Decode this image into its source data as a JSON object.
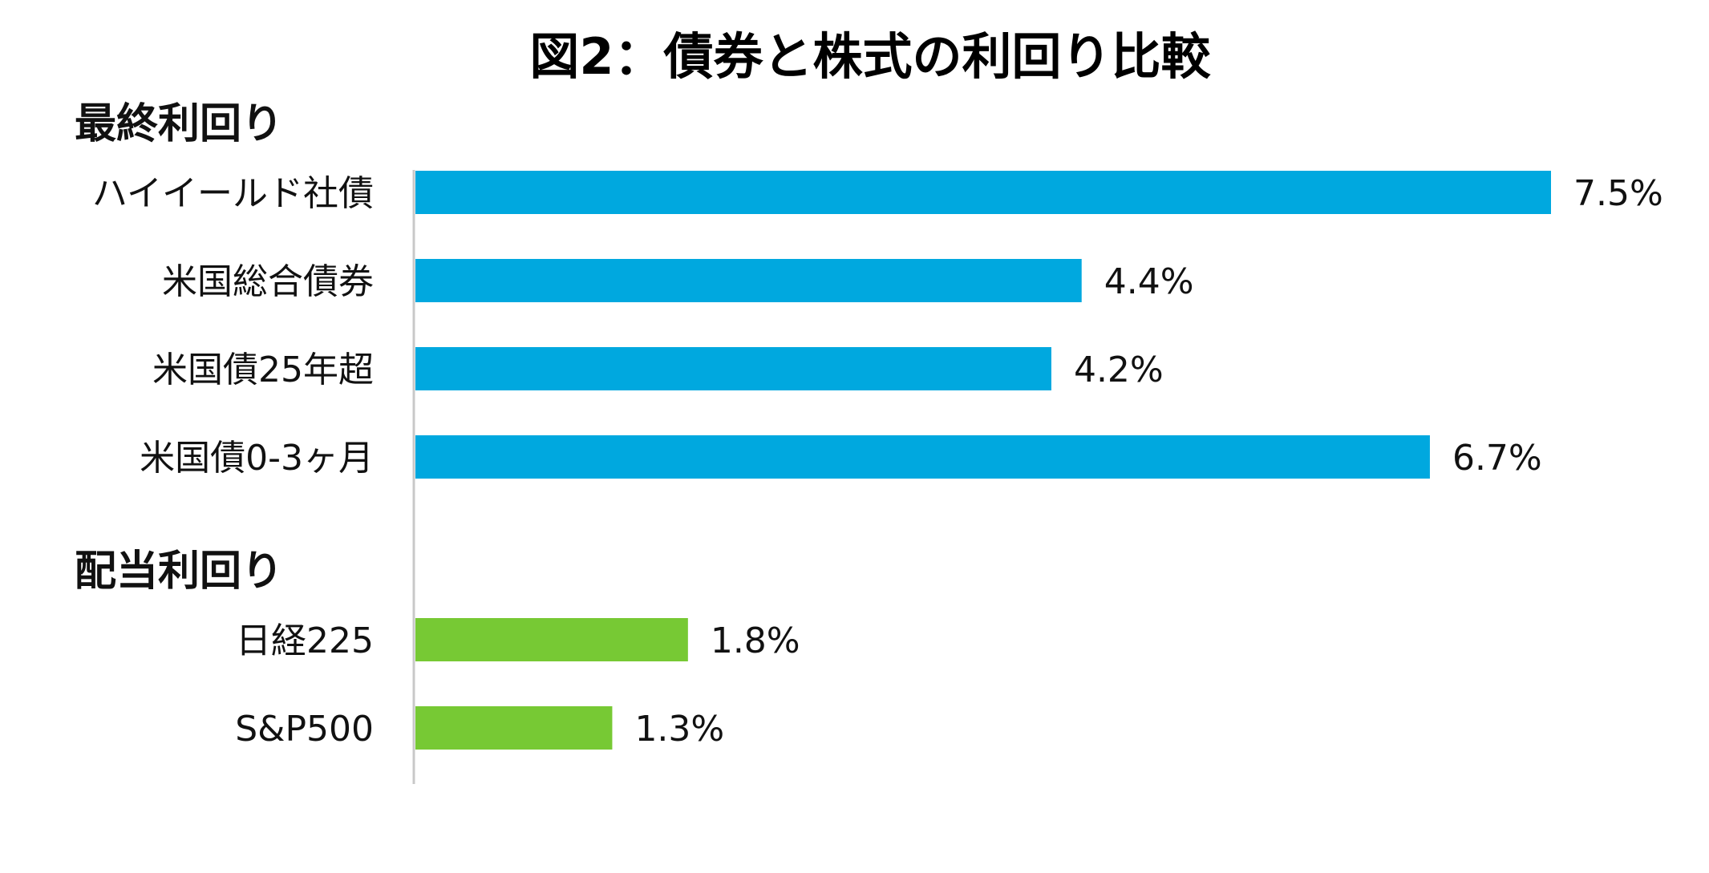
{
  "chart_data": {
    "type": "bar",
    "orientation": "horizontal",
    "title": "図2：債券と株式の利回り比較",
    "unit": "%",
    "xlim": [
      0,
      7.5
    ],
    "grid": false,
    "groups": [
      {
        "name": "最終利回り",
        "color": "#00a8df",
        "categories": [
          "ハイイールド社債",
          "米国総合債券",
          "米国債25年超",
          "米国債0-3ヶ月"
        ],
        "values": [
          7.5,
          4.4,
          4.2,
          6.7
        ],
        "labels": [
          "7.5%",
          "4.4%",
          "4.2%",
          "6.7%"
        ]
      },
      {
        "name": "配当利回り",
        "color": "#77c934",
        "categories": [
          "日経225",
          "S&P500"
        ],
        "values": [
          1.8,
          1.3
        ],
        "labels": [
          "1.8%",
          "1.3%"
        ]
      }
    ]
  }
}
